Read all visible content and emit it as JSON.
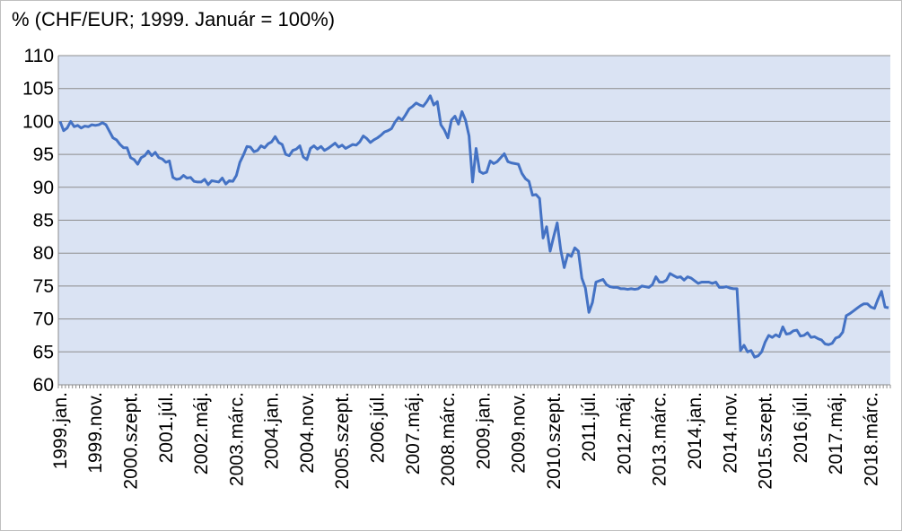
{
  "chart_data": {
    "type": "line",
    "title": "% (CHF/EUR; 1999. Január = 100%)",
    "xlabel": "",
    "ylabel": "",
    "ylim": [
      60,
      110
    ],
    "yticks": [
      60,
      65,
      70,
      75,
      80,
      85,
      90,
      95,
      100,
      105,
      110
    ],
    "grid": true,
    "plot_background": "#dae3f3",
    "line_color": "#4472c4",
    "x_tick_labels": [
      "1999.jan.",
      "1999.nov.",
      "2000.szept.",
      "2001.júl.",
      "2002.máj.",
      "2003.márc.",
      "2004.jan.",
      "2004.nov.",
      "2005.szept.",
      "2006.júl.",
      "2007.máj.",
      "2008.márc.",
      "2009.jan.",
      "2009.nov.",
      "2010.szept.",
      "2011.júl.",
      "2012.máj.",
      "2013.márc.",
      "2014.jan.",
      "2014.nov.",
      "2015.szept.",
      "2016.júl.",
      "2017.máj.",
      "2018.márc."
    ],
    "x_start": "1999.jan.",
    "x_step": "1 month",
    "series": [
      {
        "values": [
          100.0,
          98.6,
          99.0,
          100.0,
          99.2,
          99.4,
          99.0,
          99.3,
          99.2,
          99.5,
          99.4,
          99.5,
          99.8,
          99.5,
          98.5,
          97.5,
          97.2,
          96.5,
          96.0,
          96.0,
          94.5,
          94.2,
          93.5,
          94.5,
          94.8,
          95.5,
          94.8,
          95.3,
          94.5,
          94.3,
          93.8,
          94.0,
          91.5,
          91.2,
          91.3,
          91.8,
          91.4,
          91.5,
          90.9,
          90.8,
          90.8,
          91.2,
          90.4,
          91.0,
          90.9,
          90.8,
          91.4,
          90.5,
          91.0,
          90.9,
          91.8,
          93.8,
          94.9,
          96.2,
          96.1,
          95.4,
          95.6,
          96.3,
          96.0,
          96.6,
          96.9,
          97.7,
          96.8,
          96.5,
          95.0,
          94.8,
          95.6,
          95.8,
          96.3,
          94.6,
          94.2,
          95.9,
          96.3,
          95.8,
          96.2,
          95.6,
          95.9,
          96.3,
          96.7,
          96.1,
          96.4,
          95.9,
          96.2,
          96.5,
          96.4,
          96.9,
          97.8,
          97.4,
          96.8,
          97.2,
          97.5,
          97.9,
          98.4,
          98.6,
          98.9,
          99.9,
          100.6,
          100.2,
          101.0,
          101.9,
          102.3,
          102.8,
          102.5,
          102.3,
          103.0,
          103.9,
          102.5,
          103.0,
          99.5,
          98.7,
          97.5,
          100.2,
          100.8,
          99.6,
          101.5,
          100.2,
          97.8,
          90.8,
          95.9,
          92.4,
          92.1,
          92.3,
          94.0,
          93.6,
          93.9,
          94.5,
          95.1,
          93.9,
          93.7,
          93.6,
          93.5,
          92.1,
          91.3,
          90.9,
          88.8,
          88.9,
          88.3,
          82.3,
          84.0,
          80.3,
          82.5,
          84.6,
          80.5,
          77.8,
          79.8,
          79.5,
          80.8,
          80.3,
          76.2,
          74.7,
          71.0,
          72.5,
          75.6,
          75.8,
          76.0,
          75.2,
          74.9,
          74.8,
          74.8,
          74.6,
          74.6,
          74.5,
          74.6,
          74.5,
          74.6,
          75.0,
          74.9,
          74.8,
          75.2,
          76.4,
          75.6,
          75.6,
          75.9,
          76.9,
          76.6,
          76.3,
          76.4,
          75.9,
          76.4,
          76.2,
          75.8,
          75.4,
          75.6,
          75.6,
          75.6,
          75.4,
          75.6,
          74.8,
          74.8,
          74.9,
          74.7,
          74.6,
          74.6,
          65.2,
          66.0,
          65.0,
          65.2,
          64.2,
          64.4,
          65.0,
          66.5,
          67.5,
          67.2,
          67.6,
          67.3,
          68.8,
          67.7,
          67.8,
          68.2,
          68.3,
          67.4,
          67.5,
          67.9,
          67.2,
          67.3,
          67.0,
          66.8,
          66.2,
          66.1,
          66.3,
          67.1,
          67.3,
          68.0,
          70.5,
          70.8,
          71.2,
          71.6,
          72.0,
          72.3,
          72.3,
          71.8,
          71.6,
          73.0,
          74.2,
          71.8,
          71.7
        ]
      }
    ]
  }
}
